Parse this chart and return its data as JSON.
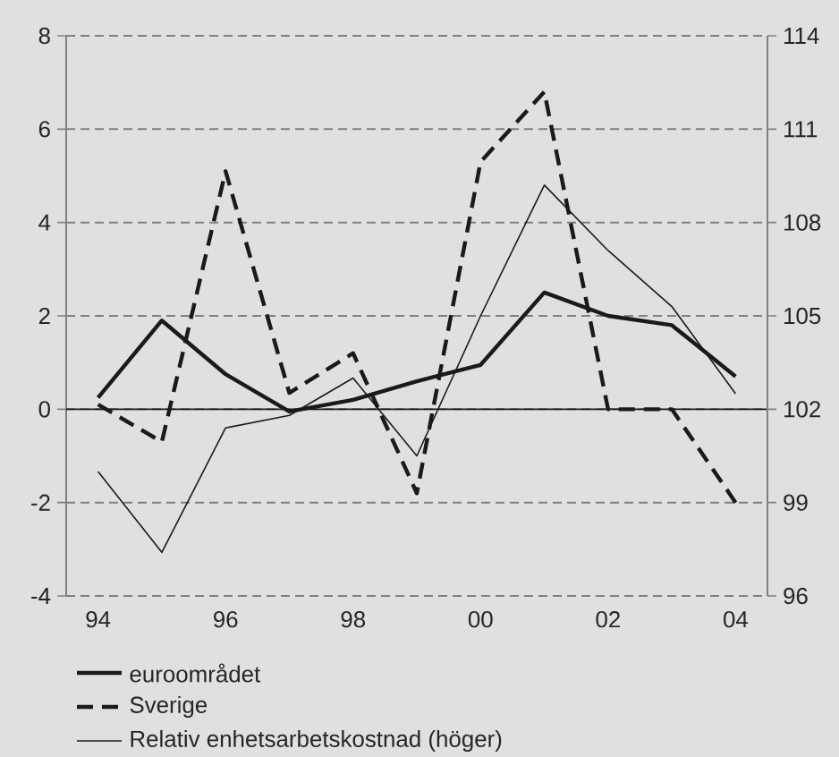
{
  "chart_data": {
    "type": "line",
    "categories": [
      "94",
      null,
      "96",
      null,
      "98",
      null,
      "00",
      null,
      "02",
      null,
      "04"
    ],
    "series": [
      {
        "name": "euroområdet",
        "color": "#1a1a1a",
        "line_style": "solid",
        "values": [
          0.25,
          1.9,
          0.75,
          -0.05,
          0.2,
          0.6,
          0.95,
          2.5,
          2.0,
          1.8,
          0.7
        ]
      },
      {
        "name": "Sverige",
        "color": "#1a1a1a",
        "line_style": "dashed",
        "values": [
          0.1,
          -0.7,
          5.1,
          0.35,
          1.2,
          -1.8,
          5.3,
          6.8,
          0.0,
          0.0,
          -2.0
        ]
      },
      {
        "name": "Relativ enhetsarbetskostnad (höger)",
        "color": "#1a1a1a",
        "line_style": "solid",
        "axis": "y2",
        "values": [
          100.0,
          97.4,
          101.4,
          101.8,
          103.0,
          100.5,
          105.0,
          109.2,
          107.1,
          105.3,
          102.5
        ]
      }
    ],
    "ylim": [
      -4,
      8
    ],
    "yticks": [
      -4,
      -2,
      0,
      2,
      4,
      6,
      8
    ],
    "y2lim": [
      96,
      114
    ],
    "y2ticks": [
      96,
      99,
      102,
      105,
      108,
      111,
      114
    ],
    "ref_lines": [
      {
        "axis": "y",
        "value": 0,
        "color": "#1a1a1a",
        "line_style": "solid"
      }
    ],
    "grid": "y",
    "legend": "bottom"
  }
}
